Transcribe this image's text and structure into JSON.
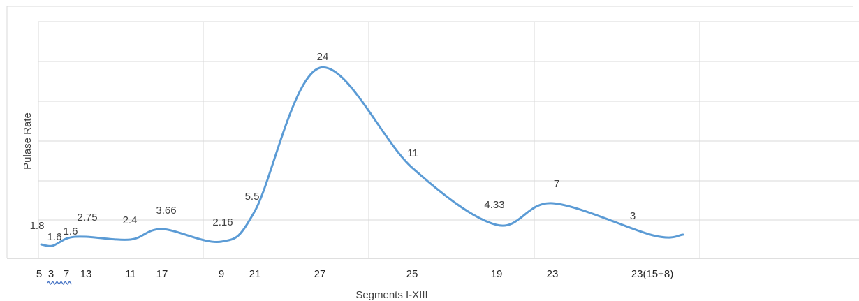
{
  "chart_data": {
    "type": "line",
    "xlabel": "Segments I-XIII",
    "ylabel": "Pulase Rate",
    "categories": [
      "5",
      "3",
      "7",
      "13",
      "11",
      "17",
      "9",
      "21",
      "27",
      "25",
      "19",
      "23",
      "23(15+8)"
    ],
    "series": [
      {
        "values": [
          1.8,
          1.6,
          1.6,
          2.75,
          2.4,
          3.66,
          2.16,
          5.5,
          24,
          11,
          4.33,
          7,
          3
        ]
      }
    ],
    "data_labels": [
      "1.8",
      "1.6",
      "1.6",
      "2.75",
      "2.4",
      "3.66",
      "2.16",
      "5.5",
      "24",
      "11",
      "4.33",
      "7",
      "3"
    ],
    "grid": true,
    "legend": "none",
    "colors": {
      "series": "#5b9bd5",
      "grid": "#d9d9d9",
      "text": "#404040"
    }
  }
}
